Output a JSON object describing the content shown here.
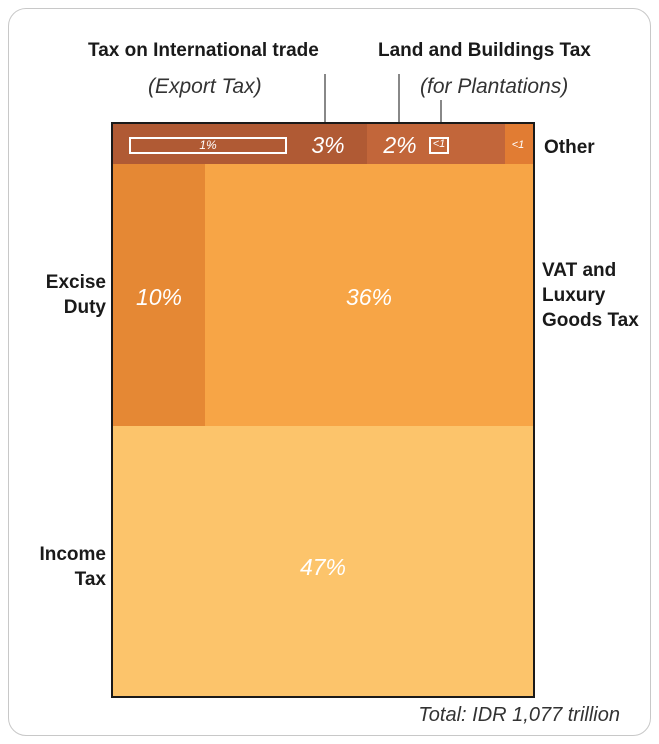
{
  "chart_data": {
    "type": "treemap",
    "total_label": "Total: IDR 1,077 trillion",
    "segments": [
      {
        "name": "Income Tax",
        "label": "Income\nTax",
        "value": 47,
        "value_label": "47%",
        "color": "#fcc46b"
      },
      {
        "name": "VAT and Luxury Goods Tax",
        "label": "VAT and\nLuxury\nGoods Tax",
        "value": 36,
        "value_label": "36%",
        "color": "#f7a546"
      },
      {
        "name": "Excise Duty",
        "label": "Excise\nDuty",
        "value": 10,
        "value_label": "10%",
        "color": "#e58834"
      },
      {
        "name": "Tax on International trade",
        "label": "Tax on International trade",
        "sublabel": "(Export Tax)",
        "value": 3,
        "value_label": "3%",
        "sub_value": 1,
        "sub_value_label": "1%",
        "color": "#b05a34"
      },
      {
        "name": "Land and Buildings Tax",
        "label": "Land and Buildings Tax",
        "sublabel": "(for Plantations)",
        "value": 2,
        "value_label": "2%",
        "sub_value_label": "<1",
        "color": "#c2663a"
      },
      {
        "name": "Other",
        "label": "Other",
        "value_label": "<1",
        "color": "#e17c33"
      }
    ]
  }
}
